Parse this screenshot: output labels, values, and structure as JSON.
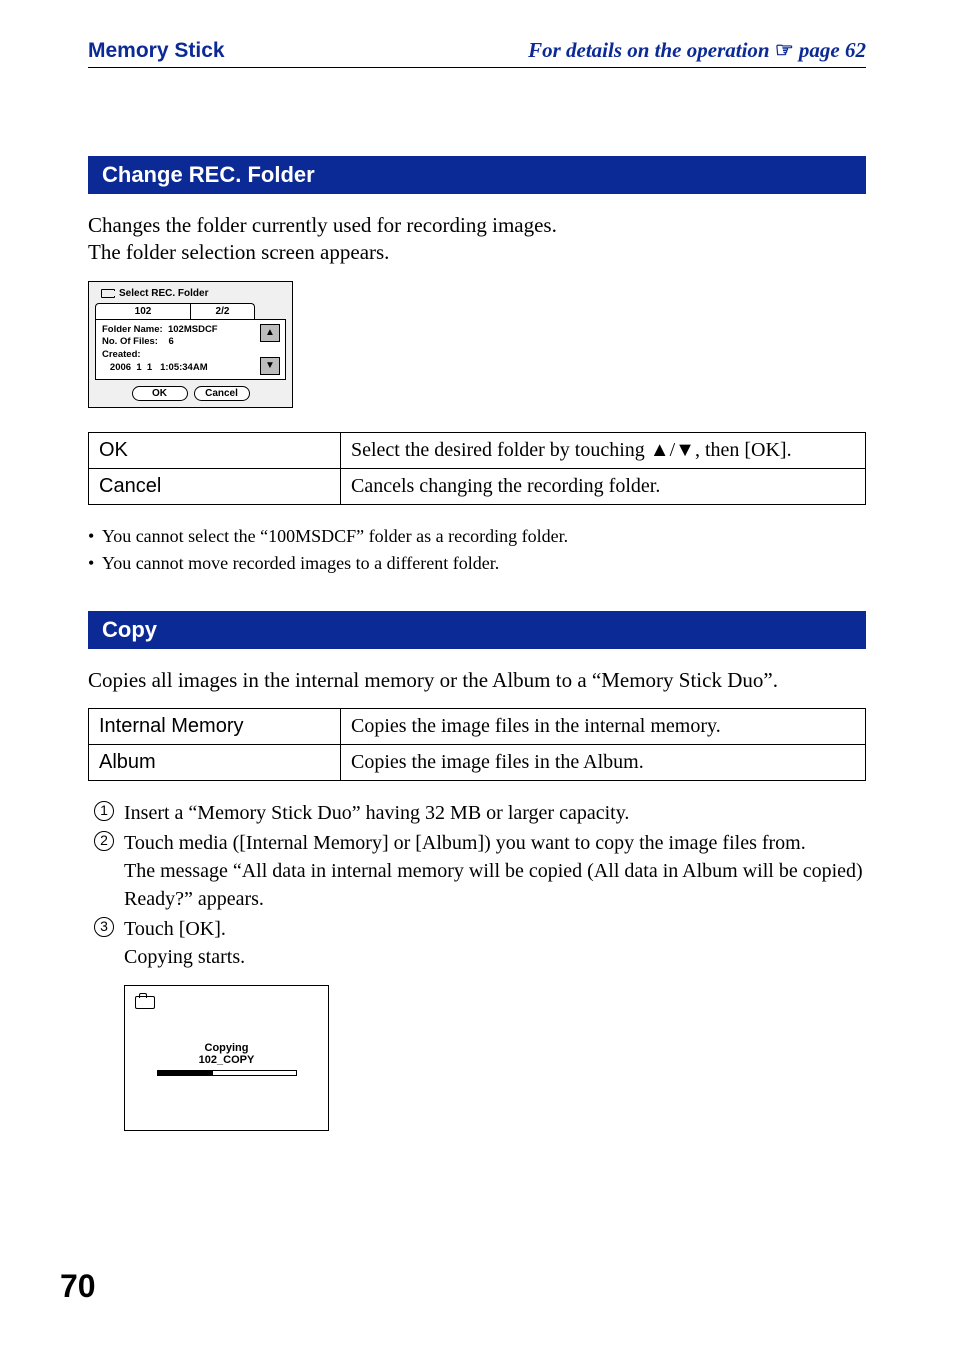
{
  "header": {
    "breadcrumb": "Memory Stick",
    "reference_prefix": "For details on the operation ",
    "reference_suffix": " page 62"
  },
  "sec1": {
    "title": "Change REC. Folder",
    "intro_l1": "Changes the folder currently used for recording images.",
    "intro_l2": "The folder selection screen appears."
  },
  "folder_shot": {
    "title": "Select REC. Folder",
    "current": "102",
    "pager": "2/2",
    "line_foldername": "Folder Name:  102MSDCF",
    "line_nofiles": "No. Of Files:    6",
    "line_created": "Created:",
    "line_time": "   2006  1  1   1:05:34AM",
    "ok": "OK",
    "cancel": "Cancel"
  },
  "table1": {
    "r1c1": "OK",
    "r1c2": "Select the desired folder by touching ▲/▼, then [OK].",
    "r2c1": "Cancel",
    "r2c2": "Cancels changing the recording folder."
  },
  "notes1": {
    "n1": "You cannot select the “100MSDCF” folder as a recording folder.",
    "n2": "You cannot move recorded images to a different folder."
  },
  "sec2": {
    "title": "Copy",
    "intro": "Copies all images in the internal memory or the Album to a “Memory Stick Duo”."
  },
  "table2": {
    "r1c1": "Internal Memory",
    "r1c2": "Copies the image files in the internal memory.",
    "r2c1": "Album",
    "r2c2": "Copies the image files in the Album."
  },
  "steps": {
    "s1": "Insert a “Memory Stick Duo” having 32 MB or larger capacity.",
    "s2a": "Touch media ([Internal Memory] or [Album]) you want to copy the image files from.",
    "s2b": "The message “All data in internal memory will be copied (All data in Album will be copied) Ready?” appears.",
    "s3a": "Touch [OK].",
    "s3b": "Copying starts."
  },
  "copy_shot": {
    "line1": "Copying",
    "line2": "102_COPY",
    "progress_pct": 40
  },
  "page_number": "70",
  "colors": {
    "brand_blue": "#0c2a96",
    "panel_grey": "#f0f0f0",
    "arrow_grey": "#bdbdbd"
  }
}
